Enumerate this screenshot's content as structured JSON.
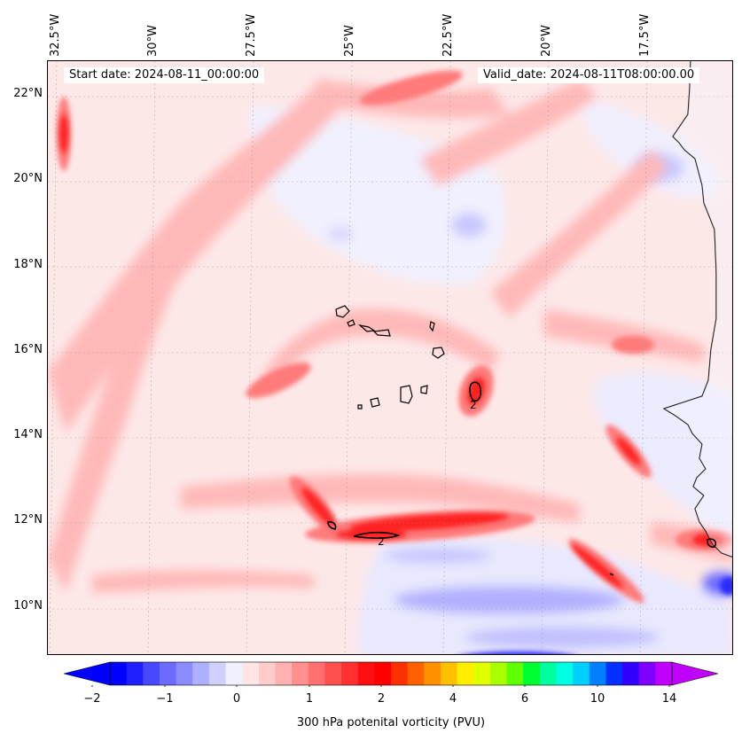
{
  "map": {
    "start_label": "Start date: 2024-08-11_00:00:00",
    "valid_label": "Valid_date: 2024-08-11T08:00:00.00",
    "lon_labels": [
      "32.5°W",
      "30°W",
      "27.5°W",
      "25°W",
      "22.5°W",
      "20°W",
      "17.5°W"
    ],
    "lat_labels": [
      "22°N",
      "20°N",
      "18°N",
      "16°N",
      "14°N",
      "12°N",
      "10°N"
    ],
    "contour_labels": [
      "2",
      "2"
    ],
    "extent": {
      "lon_min": -33.0,
      "lon_max": -15.5,
      "lat_min": 8.9,
      "lat_max": 22.8
    }
  },
  "colorbar": {
    "title": "300 hPa potenital vorticity (PVU)",
    "tick_labels": [
      "−2",
      "−1",
      "0",
      "1",
      "2",
      "4",
      "6",
      "10",
      "14"
    ],
    "colors": [
      "#0000ff",
      "#2020ff",
      "#4848ff",
      "#6b6bff",
      "#8c8cff",
      "#afafff",
      "#d0d0ff",
      "#f0f0ff",
      "#ffe6e6",
      "#ffcccc",
      "#ffb0b0",
      "#ff9090",
      "#ff7070",
      "#ff5050",
      "#ff3030",
      "#ff1010",
      "#ff0000",
      "#ff3000",
      "#ff6000",
      "#ff9000",
      "#ffc000",
      "#ffee00",
      "#e0ff00",
      "#a8ff00",
      "#60ff00",
      "#00ff30",
      "#00ffa0",
      "#00ffe0",
      "#00d0ff",
      "#0080ff",
      "#0030ff",
      "#3000ff",
      "#8000ff",
      "#c000ff"
    ]
  },
  "colors": {
    "background_pink": "#fde8e8",
    "light_red": "#ffb3b3",
    "mid_red": "#ff7070",
    "deep_red": "#ff2020",
    "light_blue": "#d0d0ff",
    "mid_blue": "#7070ff",
    "deep_blue": "#2020ff"
  }
}
